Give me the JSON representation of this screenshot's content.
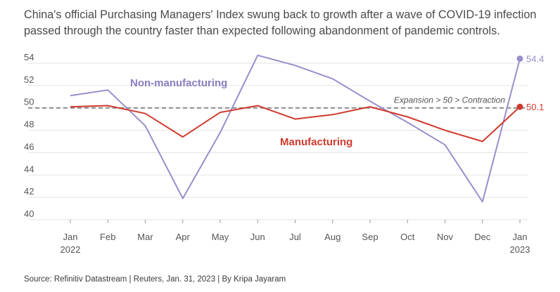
{
  "subtitle": "China's official Purchasing Managers' Index swung back to growth after a wave of COVID-19 infection passed through the country faster than expected following abandonment of pandemic controls.",
  "source": "Source: Refinitiv Datastream | Reuters, Jan. 31, 2023 | By Kripa Jayaram",
  "chart_data": {
    "type": "line",
    "categories": [
      "Jan\n2022",
      "Feb",
      "Mar",
      "Apr",
      "May",
      "Jun",
      "Jul",
      "Aug",
      "Sep",
      "Oct",
      "Nov",
      "Dec",
      "Jan\n2023"
    ],
    "ylim": [
      40,
      55
    ],
    "yticks": [
      40,
      42,
      44,
      46,
      48,
      50,
      52,
      54
    ],
    "grid": true,
    "reference_line": {
      "value": 50,
      "label": "Expansion > 50 > Contraction"
    },
    "series": [
      {
        "name": "Non-manufacturing",
        "color": "#9b8dcc",
        "values": [
          51.1,
          51.6,
          48.4,
          41.9,
          47.8,
          54.7,
          53.8,
          52.6,
          50.6,
          48.7,
          46.7,
          41.6,
          54.4
        ],
        "end_label": "54.4"
      },
      {
        "name": "Manufacturing",
        "color": "#d03a2f",
        "values": [
          50.1,
          50.2,
          49.5,
          47.4,
          49.6,
          50.2,
          49.0,
          49.4,
          50.1,
          49.2,
          48.0,
          47.0,
          50.1
        ],
        "end_label": "50.1"
      }
    ]
  }
}
